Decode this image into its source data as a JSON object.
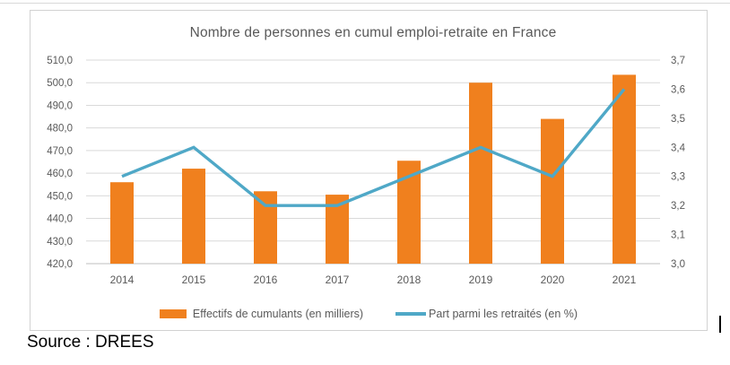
{
  "page": {
    "source_label": "Source : DREES"
  },
  "chart_data": {
    "type": "bar",
    "subtype": "combo-bar-line",
    "title": "Nombre de personnes en cumul emploi-retraite en France",
    "categories": [
      "2014",
      "2015",
      "2016",
      "2017",
      "2018",
      "2019",
      "2020",
      "2021"
    ],
    "series": [
      {
        "name": "Effectifs de cumulants (en milliers)",
        "type": "bar",
        "axis": "left",
        "color": "#F0801E",
        "values": [
          456,
          462,
          452,
          450.5,
          465.5,
          500,
          484,
          503.5
        ]
      },
      {
        "name": "Part parmi les retraités (en %)",
        "type": "line",
        "axis": "right",
        "color": "#4FA8C7",
        "values": [
          3.3,
          3.4,
          3.2,
          3.2,
          3.3,
          3.4,
          3.3,
          3.6
        ]
      }
    ],
    "left_axis": {
      "min": 420,
      "max": 510,
      "step": 10,
      "tick_labels": [
        "420,0",
        "430,0",
        "440,0",
        "450,0",
        "460,0",
        "470,0",
        "480,0",
        "490,0",
        "500,0",
        "510,0"
      ]
    },
    "right_axis": {
      "min": 3.0,
      "max": 3.7,
      "step": 0.1,
      "tick_labels": [
        "3,0",
        "3,1",
        "3,2",
        "3,3",
        "3,4",
        "3,5",
        "3,6",
        "3,7"
      ]
    },
    "grid": true,
    "legend_position": "bottom",
    "colors": {
      "gridline": "#d9d9d9",
      "baseline": "#bfbfbf",
      "tick_text": "#595959",
      "title_text": "#595959"
    }
  }
}
